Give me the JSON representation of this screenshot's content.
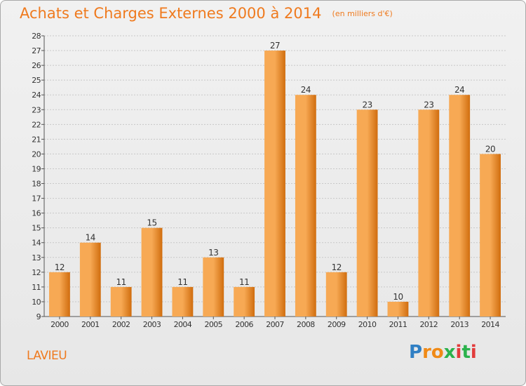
{
  "header": {
    "title": "Achats et Charges Externes 2000 à 2014",
    "subtitle": "(en milliers d'€)"
  },
  "footer": {
    "commune": "LAVIEU",
    "brand": "Proxiti",
    "brand_letters": [
      "P",
      "r",
      "o",
      "x",
      "i",
      "t",
      "i"
    ],
    "brand_colors": [
      "#2f7fc4",
      "#f08a17",
      "#f08a17",
      "#2bb24c",
      "#e23b3b",
      "#2bb24c",
      "#e23b3b"
    ]
  },
  "colors": {
    "bar_light": "#f7a954",
    "bar_dark": "#d06d0e",
    "accent": "#ef7a1e",
    "grid": "#c8c8c8"
  },
  "chart_data": {
    "type": "bar",
    "title": "Achats et Charges Externes 2000 à 2014",
    "subtitle": "(en milliers d'€)",
    "categories": [
      "2000",
      "2001",
      "2002",
      "2003",
      "2004",
      "2005",
      "2006",
      "2007",
      "2008",
      "2009",
      "2010",
      "2011",
      "2012",
      "2013",
      "2014"
    ],
    "values": [
      12,
      14,
      11,
      15,
      11,
      13,
      11,
      27,
      24,
      12,
      23,
      10,
      23,
      24,
      20
    ],
    "ylim": [
      9,
      28
    ],
    "yticks": [
      9,
      10,
      11,
      12,
      13,
      14,
      15,
      16,
      17,
      18,
      19,
      20,
      21,
      22,
      23,
      24,
      25,
      26,
      27,
      28
    ],
    "grid": true,
    "data_labels": true,
    "xlabel": "",
    "ylabel": ""
  }
}
